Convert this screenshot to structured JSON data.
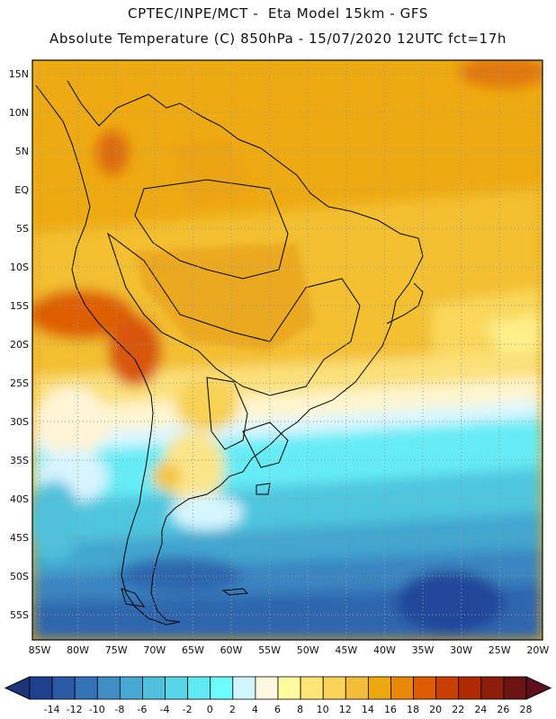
{
  "header": {
    "line1": "CPTEC/INPE/MCT -  Eta Model 15km - GFS",
    "line2": "Absolute Temperature (C) 850hPa - 15/07/2020 12UTC fct=17h"
  },
  "map": {
    "type": "temperature-map",
    "region": "South America",
    "lat_labels": [
      "15N",
      "10N",
      "5N",
      "EQ",
      "5S",
      "10S",
      "15S",
      "20S",
      "25S",
      "30S",
      "35S",
      "40S",
      "45S",
      "50S",
      "55S"
    ],
    "lon_labels": [
      "85W",
      "80W",
      "75W",
      "70W",
      "65W",
      "60W",
      "55W",
      "50W",
      "45W",
      "40W",
      "35W",
      "30W",
      "25W",
      "20W"
    ],
    "grid": "dotted"
  },
  "colorbar": {
    "labels": [
      "-14",
      "-12",
      "-10",
      "-8",
      "-6",
      "-4",
      "-2",
      "0",
      "2",
      "4",
      "6",
      "8",
      "10",
      "12",
      "14",
      "16",
      "18",
      "20",
      "22",
      "24",
      "26",
      "28"
    ],
    "colors": [
      "#1f3f8f",
      "#2a59a6",
      "#3573b9",
      "#3f8fc6",
      "#47a9d2",
      "#4fc1dc",
      "#56d6e6",
      "#62eaf2",
      "#6ffcff",
      "#d2f6ff",
      "#fff7df",
      "#fffc9e",
      "#ffe676",
      "#fad35b",
      "#f3bd39",
      "#eea80f",
      "#e88708",
      "#dd5c00",
      "#c84000",
      "#b02a00",
      "#8d1e08",
      "#6b1414"
    ]
  }
}
